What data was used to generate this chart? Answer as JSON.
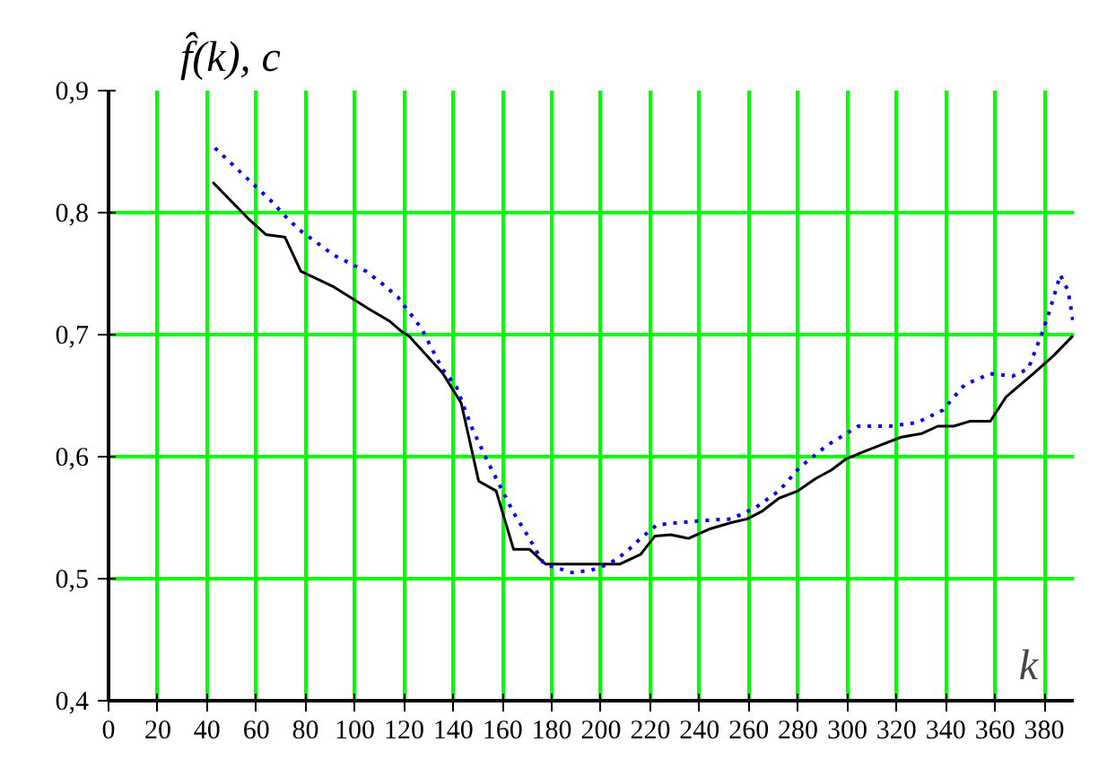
{
  "chart_data": {
    "type": "line",
    "xlabel": "k",
    "ylabel": "f̂(k), c",
    "xlim": [
      0,
      392
    ],
    "ylim": [
      0.4,
      0.9
    ],
    "xticks": [
      0,
      20,
      40,
      60,
      80,
      100,
      120,
      140,
      160,
      180,
      200,
      220,
      240,
      260,
      280,
      300,
      320,
      340,
      360,
      380
    ],
    "yticks": [
      {
        "value": 0.4,
        "label": "0,4"
      },
      {
        "value": 0.5,
        "label": "0,5"
      },
      {
        "value": 0.6,
        "label": "0,6"
      },
      {
        "value": 0.7,
        "label": "0,7"
      },
      {
        "value": 0.8,
        "label": "0,8"
      },
      {
        "value": 0.9,
        "label": "0,9"
      }
    ],
    "grid": true,
    "series": [
      {
        "color": "#000000",
        "line_style": "solid",
        "x": [
          42.3,
          56.8,
          63.9,
          71.6,
          78.1,
          91.6,
          105.8,
          114.2,
          119.4,
          121.9,
          135.5,
          143.2,
          147.1,
          150.3,
          157.4,
          164.5,
          171,
          177.4,
          207.7,
          216.1,
          221.9,
          228.4,
          235.5,
          244.5,
          252.9,
          259.4,
          265.2,
          272.3,
          280,
          287.1,
          293.5,
          299.4,
          306.5,
          314.2,
          321.9,
          330.3,
          336.8,
          343.2,
          349.7,
          358.1,
          364.5,
          375.5,
          383.9,
          391.6
        ],
        "values": [
          0.825,
          0.795,
          0.782,
          0.78,
          0.752,
          0.739,
          0.721,
          0.711,
          0.702,
          0.699,
          0.669,
          0.644,
          0.609,
          0.58,
          0.572,
          0.524,
          0.524,
          0.512,
          0.512,
          0.52,
          0.535,
          0.536,
          0.533,
          0.541,
          0.546,
          0.549,
          0.555,
          0.566,
          0.572,
          0.582,
          0.589,
          0.598,
          0.604,
          0.61,
          0.616,
          0.619,
          0.625,
          0.625,
          0.629,
          0.629,
          0.649,
          0.668,
          0.683,
          0.699
        ]
      },
      {
        "color": "#0000ff",
        "line_style": "dotted",
        "x": [
          43.2,
          65.8,
          72.3,
          77.4,
          91.6,
          104.5,
          111,
          117.4,
          127.1,
          135.5,
          141.3,
          147.7,
          154.2,
          164.5,
          170.3,
          176.8,
          188.4,
          196.1,
          203.2,
          209.7,
          216.1,
          222.6,
          231.6,
          244.5,
          252.9,
          262.6,
          272.3,
          280.6,
          291.6,
          304.5,
          317.4,
          328.4,
          338.7,
          347.7,
          358.1,
          367.1,
          373.5,
          380,
          383.9,
          386.5,
          389.7,
          391.6
        ],
        "values": [
          0.853,
          0.81,
          0.796,
          0.786,
          0.765,
          0.752,
          0.742,
          0.731,
          0.705,
          0.672,
          0.657,
          0.623,
          0.595,
          0.554,
          0.535,
          0.512,
          0.505,
          0.507,
          0.512,
          0.521,
          0.533,
          0.544,
          0.546,
          0.548,
          0.549,
          0.558,
          0.572,
          0.591,
          0.609,
          0.625,
          0.625,
          0.628,
          0.638,
          0.659,
          0.668,
          0.666,
          0.672,
          0.706,
          0.731,
          0.749,
          0.736,
          0.712
        ]
      }
    ]
  }
}
